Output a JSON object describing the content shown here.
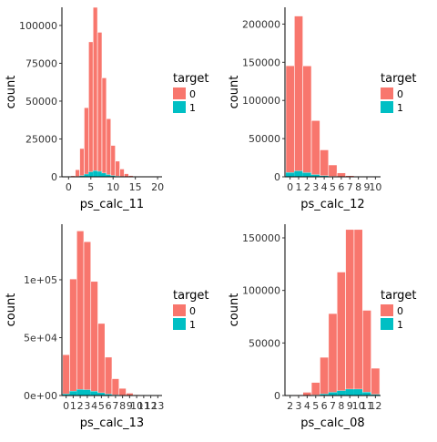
{
  "colors": {
    "0": "#F8766D",
    "1": "#00BFC4"
  },
  "legend": {
    "title": "target",
    "labels": [
      "0",
      "1"
    ]
  },
  "chart_data": [
    {
      "type": "bar",
      "xlabel": "ps_calc_11",
      "ylabel": "count",
      "xlim": [
        -1.5,
        21
      ],
      "ylim": [
        0,
        112000
      ],
      "xticks": [
        "0",
        "5",
        "10",
        "15",
        "20"
      ],
      "xtick_values": [
        0,
        5,
        10,
        15,
        20
      ],
      "yticks": [
        "0",
        "25000",
        "50000",
        "75000",
        "100000"
      ],
      "ytick_values": [
        0,
        25000,
        50000,
        75000,
        100000
      ],
      "bar_width": 1,
      "x": [
        0,
        1,
        2,
        3,
        4,
        5,
        6,
        7,
        8,
        9,
        10,
        11,
        12,
        13,
        14,
        15,
        16,
        17,
        18,
        19
      ],
      "series": [
        {
          "name": "0",
          "values": [
            50,
            700,
            4500,
            18000,
            44000,
            86000,
            108000,
            92000,
            63000,
            37000,
            20000,
            10000,
            5000,
            2000,
            800,
            300,
            100,
            40,
            10,
            5
          ]
        },
        {
          "name": "1",
          "values": [
            5,
            30,
            200,
            700,
            1700,
            3200,
            4000,
            3500,
            2400,
            1400,
            750,
            380,
            180,
            70,
            30,
            10,
            4,
            2,
            1,
            0
          ]
        }
      ]
    },
    {
      "type": "bar",
      "xlabel": "ps_calc_12",
      "ylabel": "count",
      "xlim": [
        -0.6,
        10.6
      ],
      "ylim": [
        0,
        222000
      ],
      "xticks": [
        "0",
        "1",
        "2",
        "3",
        "4",
        "5",
        "6",
        "7",
        "8",
        "9",
        "10"
      ],
      "xtick_values": [
        0,
        1,
        2,
        3,
        4,
        5,
        6,
        7,
        8,
        9,
        10
      ],
      "yticks": [
        "0",
        "50000",
        "100000",
        "150000",
        "200000"
      ],
      "ytick_values": [
        0,
        50000,
        100000,
        150000,
        200000
      ],
      "bar_width": 1,
      "x": [
        0,
        1,
        2,
        3,
        4,
        5,
        6,
        7,
        8,
        9,
        10
      ],
      "series": [
        {
          "name": "0",
          "values": [
            140000,
            203000,
            140000,
            71000,
            34000,
            15000,
            5000,
            1500,
            400,
            100,
            30
          ]
        },
        {
          "name": "1",
          "values": [
            5500,
            7600,
            5300,
            2700,
            1300,
            550,
            180,
            50,
            15,
            4,
            1
          ]
        }
      ]
    },
    {
      "type": "bar",
      "xlabel": "ps_calc_13",
      "ylabel": "count",
      "xlim": [
        -0.6,
        13.6
      ],
      "ylim": [
        0,
        148000
      ],
      "xticks": [
        "0",
        "1",
        "2",
        "3",
        "4",
        "5",
        "6",
        "7",
        "8",
        "9",
        "10",
        "11",
        "12",
        "13"
      ],
      "xtick_values": [
        0,
        1,
        2,
        3,
        4,
        5,
        6,
        7,
        8,
        9,
        10,
        11,
        12,
        13
      ],
      "yticks": [
        "0e+00",
        "5e+04",
        "1e+05"
      ],
      "ytick_values": [
        0,
        50000,
        100000
      ],
      "bar_width": 1,
      "x": [
        0,
        1,
        2,
        3,
        4,
        5,
        6,
        7,
        8,
        9,
        10,
        11,
        12,
        13
      ],
      "series": [
        {
          "name": "0",
          "values": [
            34000,
            97000,
            137000,
            128000,
            95000,
            60000,
            32000,
            14000,
            6000,
            2000,
            700,
            200,
            60,
            20
          ]
        },
        {
          "name": "1",
          "values": [
            1300,
            3700,
            5200,
            4900,
            3600,
            2300,
            1200,
            550,
            230,
            80,
            25,
            8,
            2,
            1
          ]
        }
      ]
    },
    {
      "type": "bar",
      "xlabel": "ps_calc_08",
      "ylabel": "count",
      "xlim": [
        1.4,
        12.6
      ],
      "ylim": [
        0,
        163000
      ],
      "xticks": [
        "2",
        "3",
        "4",
        "5",
        "6",
        "7",
        "8",
        "9",
        "10",
        "11",
        "12"
      ],
      "xtick_values": [
        2,
        3,
        4,
        5,
        6,
        7,
        8,
        9,
        10,
        11,
        12
      ],
      "yticks": [
        "0",
        "50000",
        "100000",
        "150000"
      ],
      "ytick_values": [
        0,
        50000,
        100000,
        150000
      ],
      "bar_width": 1,
      "x": [
        2,
        3,
        4,
        5,
        6,
        7,
        8,
        9,
        10,
        11,
        12
      ],
      "series": [
        {
          "name": "0",
          "values": [
            50,
            500,
            3000,
            12000,
            35000,
            75000,
            113000,
            152000,
            152000,
            78000,
            25000
          ]
        },
        {
          "name": "1",
          "values": [
            2,
            20,
            120,
            480,
            1400,
            3000,
            4500,
            6000,
            6000,
            3100,
            1000
          ]
        }
      ]
    }
  ]
}
